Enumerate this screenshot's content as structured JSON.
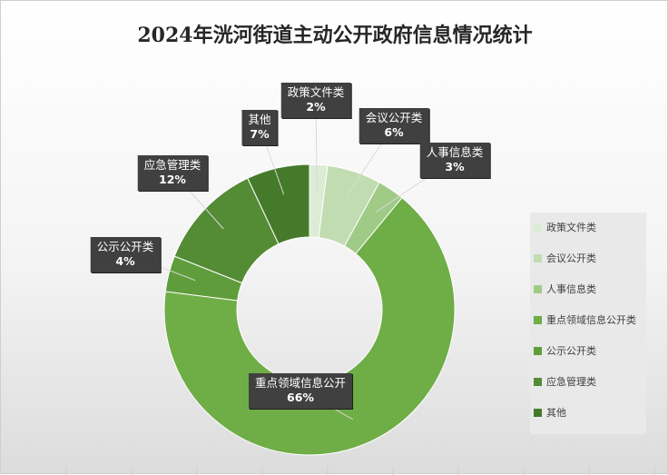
{
  "chart_data": {
    "type": "pie",
    "variant": "donut",
    "title": "2024年洸河街道主动公开政府信息情况统计",
    "categories": [
      "政策文件类",
      "会议公开类",
      "人事信息类",
      "重点领域信息公开类",
      "公示公开类",
      "应急管理类",
      "其他"
    ],
    "values": [
      2,
      6,
      3,
      66,
      4,
      12,
      7
    ],
    "unit": "%",
    "colors": [
      "#dcebd3",
      "#c2dcb2",
      "#9fcb87",
      "#6fad47",
      "#5f9d3c",
      "#548b35",
      "#467a2b"
    ],
    "data_labels": [
      {
        "name": "政策文件类",
        "value": "2%"
      },
      {
        "name": "会议公开类",
        "value": "6%"
      },
      {
        "name": "人事信息类",
        "value": "3%"
      },
      {
        "name": "重点领域信息公开",
        "value": "66%"
      },
      {
        "name": "公示公开类",
        "value": "4%"
      },
      {
        "name": "应急管理类",
        "value": "12%"
      },
      {
        "name": "其他",
        "value": "7%"
      }
    ],
    "legend_position": "right",
    "legend": [
      "政策文件类",
      "会议公开类",
      "人事信息类",
      "重点领域信息公开类",
      "公示公开类",
      "应急管理类",
      "其他"
    ]
  }
}
